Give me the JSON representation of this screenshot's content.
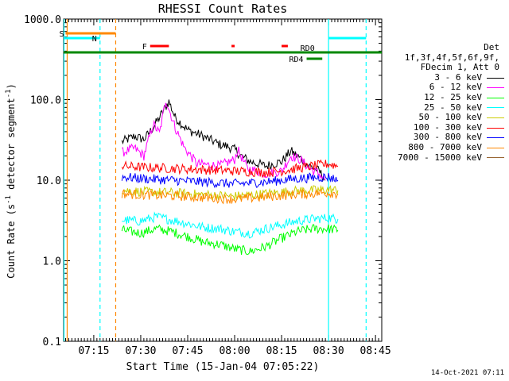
{
  "chart_data": {
    "type": "line",
    "title": "RHESSI Count Rates",
    "xlabel": "Start Time (15-Jan-04 07:05:22)",
    "ylabel_parts": [
      "Count Rate (s",
      "-1",
      " detector segment",
      "-1",
      ")"
    ],
    "yscale": "log",
    "ylim": [
      0.1,
      1000
    ],
    "xlim_minutes": [
      "07:05:22",
      "08:47:00"
    ],
    "x_ticks": [
      "07:15",
      "07:30",
      "07:45",
      "08:00",
      "08:15",
      "08:30",
      "08:45"
    ],
    "y_ticks": [
      "1000.0",
      "100.0",
      "10.0",
      "1.0",
      "0.1"
    ],
    "legend_header": [
      "Det 1f,3f,4f,5f,6f,9f,",
      "FDecim 1, Att 0"
    ],
    "series": [
      {
        "name": "3 - 6 keV",
        "color": "#000000",
        "points": [
          [
            "07:24",
            30
          ],
          [
            "07:28",
            35
          ],
          [
            "07:31",
            32
          ],
          [
            "07:34",
            45
          ],
          [
            "07:37",
            70
          ],
          [
            "07:39",
            95
          ],
          [
            "07:41",
            60
          ],
          [
            "07:45",
            42
          ],
          [
            "07:50",
            35
          ],
          [
            "07:55",
            28
          ],
          [
            "07:58",
            26
          ],
          [
            "08:00",
            24
          ],
          [
            "08:02",
            20
          ],
          [
            "08:05",
            17
          ],
          [
            "08:10",
            15
          ],
          [
            "08:15",
            17
          ],
          [
            "08:18",
            23
          ],
          [
            "08:20",
            20
          ],
          [
            "08:24",
            15
          ],
          [
            "08:27",
            13
          ],
          [
            "08:29",
            10
          ]
        ]
      },
      {
        "name": "6 - 12 keV",
        "color": "#ff00ff",
        "points": [
          [
            "07:24",
            22
          ],
          [
            "07:28",
            25
          ],
          [
            "07:31",
            20
          ],
          [
            "07:34",
            50
          ],
          [
            "07:36",
            38
          ],
          [
            "07:38",
            100
          ],
          [
            "07:41",
            45
          ],
          [
            "07:44",
            25
          ],
          [
            "07:48",
            16
          ],
          [
            "07:55",
            15
          ],
          [
            "08:00",
            18
          ],
          [
            "08:01",
            24
          ],
          [
            "08:04",
            14
          ],
          [
            "08:10",
            12
          ],
          [
            "08:15",
            13
          ],
          [
            "08:18",
            20
          ],
          [
            "08:21",
            18
          ],
          [
            "08:24",
            14
          ],
          [
            "08:27",
            12
          ],
          [
            "08:29",
            10
          ]
        ]
      },
      {
        "name": "12 - 25 keV",
        "color": "#00ff00",
        "points": [
          [
            "07:24",
            2.4
          ],
          [
            "07:30",
            2.2
          ],
          [
            "07:35",
            2.5
          ],
          [
            "07:40",
            2.3
          ],
          [
            "07:45",
            2.0
          ],
          [
            "07:50",
            1.7
          ],
          [
            "07:55",
            1.6
          ],
          [
            "08:00",
            1.4
          ],
          [
            "08:05",
            1.3
          ],
          [
            "08:10",
            1.5
          ],
          [
            "08:15",
            1.9
          ],
          [
            "08:20",
            2.3
          ],
          [
            "08:25",
            2.5
          ],
          [
            "08:30",
            2.5
          ],
          [
            "08:33",
            2.4
          ]
        ]
      },
      {
        "name": "25 - 50 keV",
        "color": "#00ffff",
        "points": [
          [
            "07:24",
            3.2
          ],
          [
            "07:30",
            3.1
          ],
          [
            "07:35",
            3.5
          ],
          [
            "07:40",
            3.2
          ],
          [
            "07:45",
            2.9
          ],
          [
            "07:50",
            2.6
          ],
          [
            "07:55",
            2.5
          ],
          [
            "08:00",
            2.3
          ],
          [
            "08:05",
            2.2
          ],
          [
            "08:10",
            2.5
          ],
          [
            "08:15",
            2.8
          ],
          [
            "08:20",
            3.1
          ],
          [
            "08:25",
            3.3
          ],
          [
            "08:30",
            3.4
          ],
          [
            "08:33",
            3.3
          ]
        ]
      },
      {
        "name": "50 - 100 keV",
        "color": "#cccc00",
        "points": [
          [
            "07:24",
            7.5
          ],
          [
            "07:30",
            7.2
          ],
          [
            "07:40",
            7.0
          ],
          [
            "07:50",
            6.6
          ],
          [
            "08:00",
            6.3
          ],
          [
            "08:10",
            6.8
          ],
          [
            "08:20",
            7.4
          ],
          [
            "08:30",
            7.6
          ],
          [
            "08:33",
            7.5
          ]
        ]
      },
      {
        "name": "100 - 300 keV",
        "color": "#ff0000",
        "points": [
          [
            "07:24",
            15
          ],
          [
            "07:30",
            14.5
          ],
          [
            "07:40",
            14
          ],
          [
            "07:50",
            13.5
          ],
          [
            "08:00",
            13
          ],
          [
            "08:10",
            12.5
          ],
          [
            "08:15",
            13
          ],
          [
            "08:20",
            14
          ],
          [
            "08:25",
            15
          ],
          [
            "08:30",
            16
          ],
          [
            "08:33",
            15
          ]
        ]
      },
      {
        "name": "300 - 800 keV",
        "color": "#0000ff",
        "points": [
          [
            "07:24",
            11
          ],
          [
            "07:30",
            10.5
          ],
          [
            "07:40",
            10
          ],
          [
            "07:50",
            9.5
          ],
          [
            "08:00",
            9
          ],
          [
            "08:10",
            9.5
          ],
          [
            "08:20",
            10.5
          ],
          [
            "08:30",
            11
          ],
          [
            "08:33",
            10
          ]
        ]
      },
      {
        "name": "800 - 7000 keV",
        "color": "#ff8800",
        "points": [
          [
            "07:24",
            6.8
          ],
          [
            "07:30",
            6.6
          ],
          [
            "07:40",
            6.4
          ],
          [
            "07:50",
            6.1
          ],
          [
            "08:00",
            5.8
          ],
          [
            "08:10",
            6.2
          ],
          [
            "08:20",
            6.7
          ],
          [
            "08:30",
            7.0
          ],
          [
            "08:33",
            6.8
          ]
        ]
      },
      {
        "name": "7000 - 15000 keV",
        "color": "#996633",
        "points": []
      }
    ],
    "annotations": {
      "flags": [
        {
          "label": "S",
          "color": "#ff8800",
          "start": "07:06",
          "end": "07:22",
          "level": "S"
        },
        {
          "label": "N",
          "color": "#00ffff",
          "start": "07:05:22",
          "end": "07:17",
          "level": "N"
        },
        {
          "label": "",
          "color": "#00ffff",
          "start": "08:30",
          "end": "08:42",
          "level": "N"
        },
        {
          "label": "F",
          "color": "#ff0000",
          "start": "07:33",
          "end": "07:39",
          "level": "F"
        },
        {
          "label": "",
          "color": "#ff0000",
          "start": "07:59",
          "end": "08:00",
          "level": "F"
        },
        {
          "label": "",
          "color": "#ff0000",
          "start": "08:15",
          "end": "08:17",
          "level": "F"
        },
        {
          "label": "RD0",
          "color": "#008800",
          "start": "07:05:22",
          "end": "08:47",
          "level": "RD0"
        },
        {
          "label": "RD4",
          "color": "#008800",
          "start": "08:23",
          "end": "08:28",
          "level": "RD4"
        }
      ],
      "vlines": [
        {
          "time": "07:05:30",
          "color": "#00ffff",
          "style": "solid"
        },
        {
          "time": "07:06:30",
          "color": "#ff8800",
          "style": "solid"
        },
        {
          "time": "07:17",
          "color": "#00ffff",
          "style": "dashed"
        },
        {
          "time": "07:22",
          "color": "#ff8800",
          "style": "dashed"
        },
        {
          "time": "08:30",
          "color": "#00ffff",
          "style": "solid"
        },
        {
          "time": "08:42",
          "color": "#00ffff",
          "style": "dashed"
        }
      ]
    }
  },
  "stamp": "14-Oct-2021 07:11"
}
